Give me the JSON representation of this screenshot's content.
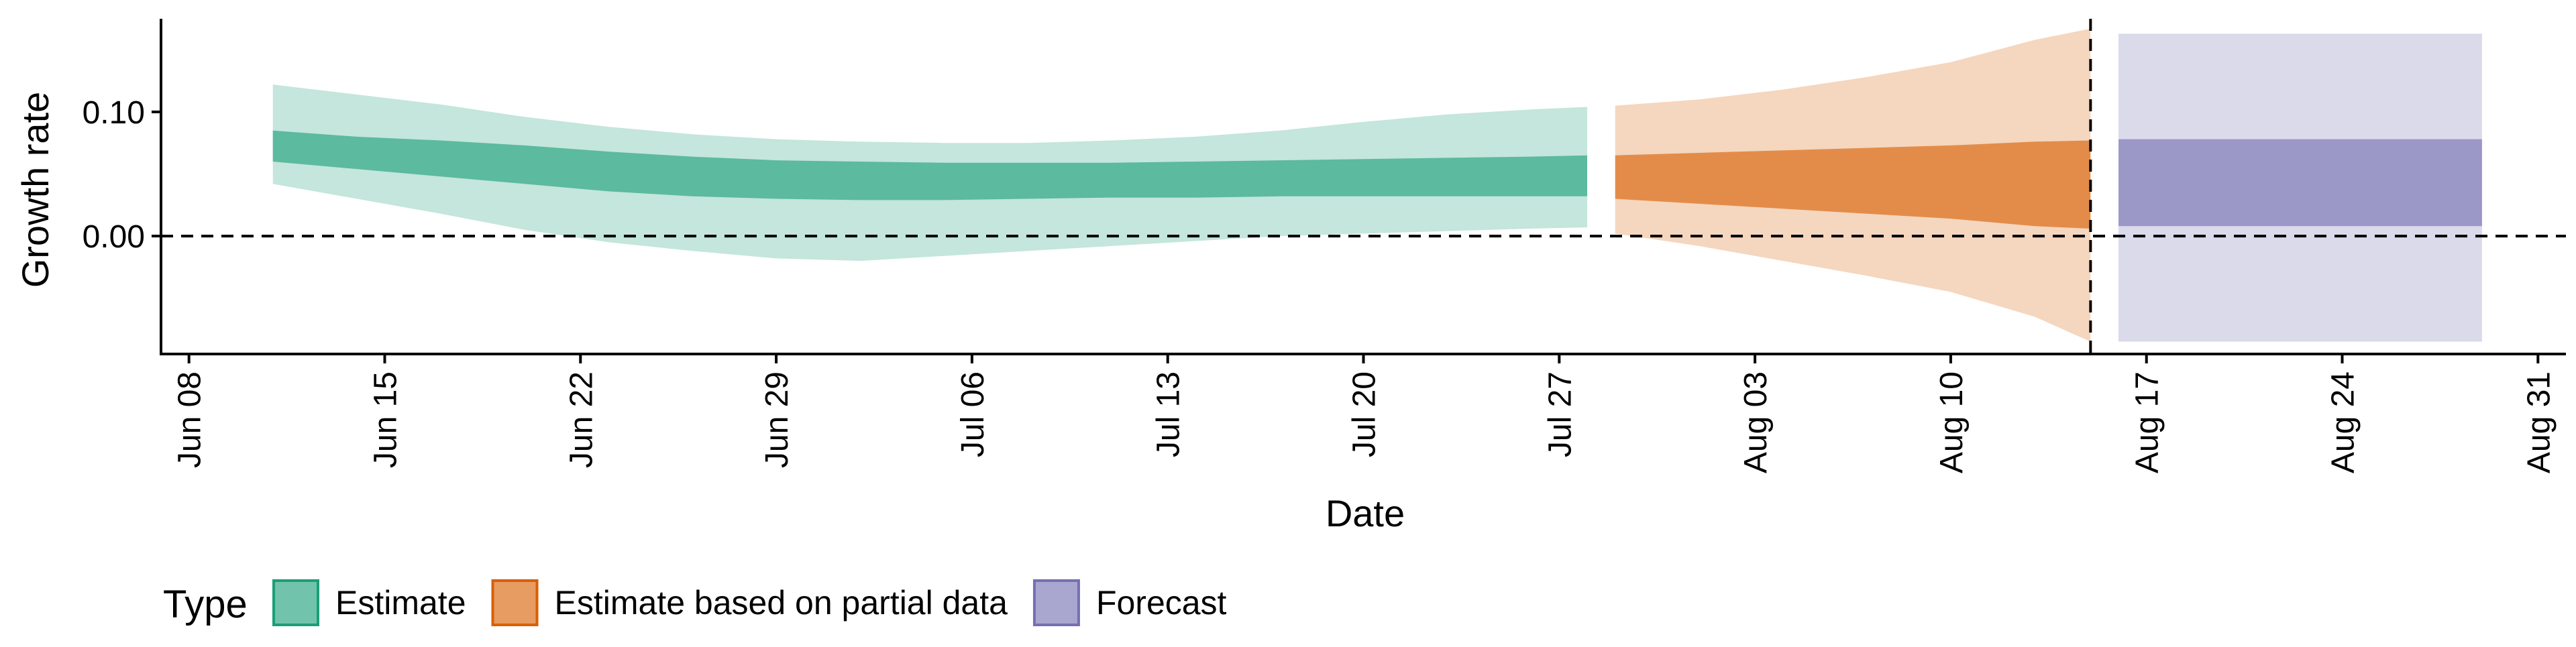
{
  "chart_data": {
    "type": "area",
    "xlabel": "Date",
    "ylabel": "Growth rate",
    "x_range": [
      "2020-06-07",
      "2020-09-01"
    ],
    "ylim": [
      -0.095,
      0.175
    ],
    "x_ticks": [
      {
        "date": "2020-06-08",
        "label": "Jun 08"
      },
      {
        "date": "2020-06-15",
        "label": "Jun 15"
      },
      {
        "date": "2020-06-22",
        "label": "Jun 22"
      },
      {
        "date": "2020-06-29",
        "label": "Jun 29"
      },
      {
        "date": "2020-07-06",
        "label": "Jul 06"
      },
      {
        "date": "2020-07-13",
        "label": "Jul 13"
      },
      {
        "date": "2020-07-20",
        "label": "Jul 20"
      },
      {
        "date": "2020-07-27",
        "label": "Jul 27"
      },
      {
        "date": "2020-08-03",
        "label": "Aug 03"
      },
      {
        "date": "2020-08-10",
        "label": "Aug 10"
      },
      {
        "date": "2020-08-17",
        "label": "Aug 17"
      },
      {
        "date": "2020-08-24",
        "label": "Aug 24"
      },
      {
        "date": "2020-08-31",
        "label": "Aug 31"
      }
    ],
    "y_ticks": [
      {
        "value": 0.1,
        "label": "0.10"
      },
      {
        "value": 0.0,
        "label": "0.00"
      }
    ],
    "reference_lines": [
      {
        "axis": "y",
        "value": 0.0,
        "style": "dashed"
      },
      {
        "axis": "x",
        "value": "2020-08-15",
        "style": "dashed"
      }
    ],
    "grid": false,
    "legend": {
      "title": "Type",
      "position": "bottom-left",
      "entries": [
        {
          "label": "Estimate",
          "color": "#1b9e77"
        },
        {
          "label": "Estimate based on partial data",
          "color": "#d95f02"
        },
        {
          "label": "Forecast",
          "color": "#7570b3"
        }
      ]
    },
    "series": [
      {
        "name": "Estimate",
        "color": "#1b9e77",
        "x": [
          "2020-06-11",
          "2020-06-14",
          "2020-06-17",
          "2020-06-20",
          "2020-06-23",
          "2020-06-26",
          "2020-06-29",
          "2020-07-02",
          "2020-07-05",
          "2020-07-08",
          "2020-07-11",
          "2020-07-14",
          "2020-07-17",
          "2020-07-20",
          "2020-07-23",
          "2020-07-26",
          "2020-07-28"
        ],
        "outer_lower": [
          0.042,
          0.03,
          0.018,
          0.005,
          -0.005,
          -0.012,
          -0.018,
          -0.02,
          -0.016,
          -0.012,
          -0.008,
          -0.004,
          0.0,
          0.002,
          0.004,
          0.006,
          0.007
        ],
        "inner_lower": [
          0.06,
          0.054,
          0.048,
          0.042,
          0.036,
          0.032,
          0.03,
          0.029,
          0.029,
          0.03,
          0.031,
          0.031,
          0.032,
          0.032,
          0.032,
          0.032,
          0.032
        ],
        "inner_upper": [
          0.085,
          0.08,
          0.077,
          0.073,
          0.068,
          0.064,
          0.061,
          0.06,
          0.059,
          0.059,
          0.059,
          0.06,
          0.061,
          0.062,
          0.063,
          0.064,
          0.065
        ],
        "outer_upper": [
          0.122,
          0.114,
          0.106,
          0.096,
          0.088,
          0.082,
          0.078,
          0.076,
          0.075,
          0.075,
          0.077,
          0.08,
          0.085,
          0.092,
          0.098,
          0.102,
          0.104
        ]
      },
      {
        "name": "Estimate based on partial data",
        "color": "#d95f02",
        "x": [
          "2020-07-29",
          "2020-08-01",
          "2020-08-04",
          "2020-08-07",
          "2020-08-10",
          "2020-08-13",
          "2020-08-15"
        ],
        "outer_lower": [
          0.002,
          -0.008,
          -0.02,
          -0.032,
          -0.045,
          -0.065,
          -0.085
        ],
        "inner_lower": [
          0.03,
          0.026,
          0.022,
          0.018,
          0.014,
          0.008,
          0.006
        ],
        "inner_upper": [
          0.065,
          0.067,
          0.069,
          0.071,
          0.073,
          0.076,
          0.077
        ],
        "outer_upper": [
          0.105,
          0.11,
          0.118,
          0.128,
          0.14,
          0.158,
          0.167
        ]
      },
      {
        "name": "Forecast",
        "color": "#7570b3",
        "x": [
          "2020-08-16",
          "2020-08-29"
        ],
        "outer_lower": [
          -0.085,
          -0.085
        ],
        "inner_lower": [
          0.008,
          0.008
        ],
        "inner_upper": [
          0.078,
          0.078
        ],
        "outer_upper": [
          0.163,
          0.163
        ]
      }
    ]
  }
}
